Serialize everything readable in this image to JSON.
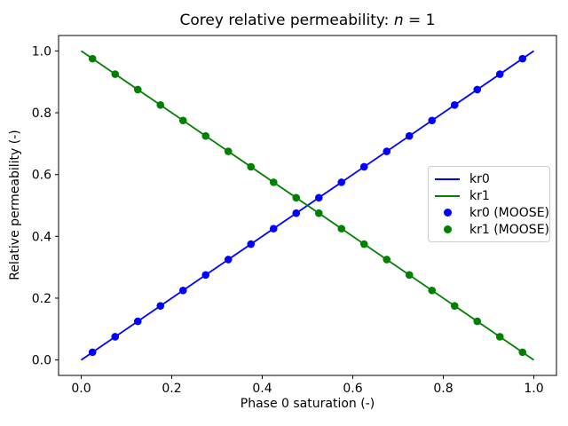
{
  "chart_data": {
    "type": "line",
    "title": "Corey relative permeability: n = 1",
    "title_parts": {
      "prefix": "Corey relative permeability: ",
      "italic_var": "n",
      "suffix": " = 1"
    },
    "xlabel": "Phase 0 saturation (-)",
    "ylabel": "Relative permeability (-)",
    "xlim": [
      -0.05,
      1.05
    ],
    "ylim": [
      -0.05,
      1.05
    ],
    "xticks": [
      0.0,
      0.2,
      0.4,
      0.6,
      0.8,
      1.0
    ],
    "yticks": [
      0.0,
      0.2,
      0.4,
      0.6,
      0.8,
      1.0
    ],
    "xtick_labels": [
      "0.0",
      "0.2",
      "0.4",
      "0.6",
      "0.8",
      "1.0"
    ],
    "ytick_labels": [
      "0.0",
      "0.2",
      "0.4",
      "0.6",
      "0.8",
      "1.0"
    ],
    "grid": false,
    "colors": {
      "kr0": "#0000ff",
      "kr1": "#008000"
    },
    "series": [
      {
        "name": "kr0",
        "type": "line",
        "color": "#0000ff",
        "x": [
          0.0,
          1.0
        ],
        "y": [
          0.0,
          1.0
        ]
      },
      {
        "name": "kr1",
        "type": "line",
        "color": "#008000",
        "x": [
          0.0,
          1.0
        ],
        "y": [
          1.0,
          0.0
        ]
      },
      {
        "name": "kr0 (MOOSE)",
        "type": "scatter",
        "color": "#0000ff",
        "x": [
          0.025,
          0.075,
          0.125,
          0.175,
          0.225,
          0.275,
          0.325,
          0.375,
          0.425,
          0.475,
          0.525,
          0.575,
          0.625,
          0.675,
          0.725,
          0.775,
          0.825,
          0.875,
          0.925,
          0.975
        ],
        "y": [
          0.025,
          0.075,
          0.125,
          0.175,
          0.225,
          0.275,
          0.325,
          0.375,
          0.425,
          0.475,
          0.525,
          0.575,
          0.625,
          0.675,
          0.725,
          0.775,
          0.825,
          0.875,
          0.925,
          0.975
        ]
      },
      {
        "name": "kr1 (MOOSE)",
        "type": "scatter",
        "color": "#008000",
        "x": [
          0.025,
          0.075,
          0.125,
          0.175,
          0.225,
          0.275,
          0.325,
          0.375,
          0.425,
          0.475,
          0.525,
          0.575,
          0.625,
          0.675,
          0.725,
          0.775,
          0.825,
          0.875,
          0.925,
          0.975
        ],
        "y": [
          0.975,
          0.925,
          0.875,
          0.825,
          0.775,
          0.725,
          0.675,
          0.625,
          0.575,
          0.525,
          0.475,
          0.425,
          0.375,
          0.325,
          0.275,
          0.225,
          0.175,
          0.125,
          0.075,
          0.025
        ]
      }
    ],
    "legend": {
      "position": "center right",
      "entries": [
        {
          "label": "kr0",
          "type": "line",
          "color": "#0000ff"
        },
        {
          "label": "kr1",
          "type": "line",
          "color": "#008000"
        },
        {
          "label": "kr0 (MOOSE)",
          "type": "scatter",
          "color": "#0000ff"
        },
        {
          "label": "kr1 (MOOSE)",
          "type": "scatter",
          "color": "#008000"
        }
      ]
    }
  }
}
